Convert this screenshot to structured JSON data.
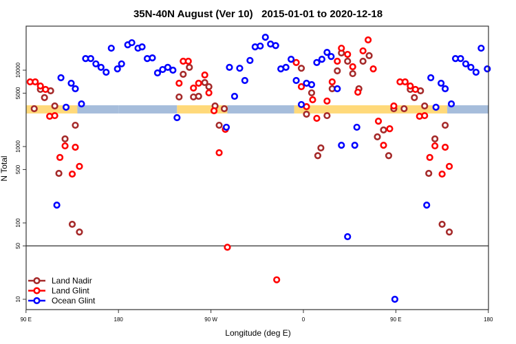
{
  "chart_data": {
    "type": "scatter",
    "title": "35N-40N August (Ver 10)   2015-01-01 to 2020-12-18",
    "xlabel": "Longitude (deg E)",
    "ylabel": "N Total",
    "y_scale": "log",
    "ylim": [
      7.3,
      38000
    ],
    "xlim_description": "90 E to 180, wrapping through 180 and 0 to 180",
    "x_ticks": [
      {
        "lon": 90,
        "wrap": 0,
        "label": "90 E"
      },
      {
        "lon": 180,
        "wrap": 0,
        "label": "180"
      },
      {
        "lon": -90,
        "wrap": 0,
        "label": "90 W"
      },
      {
        "lon": 0,
        "wrap": 0,
        "label": "0"
      },
      {
        "lon": 90,
        "wrap": 1,
        "label": "90 E"
      },
      {
        "lon": 180,
        "wrap": 1,
        "label": "180"
      }
    ],
    "y_ticks": [
      {
        "value": 10,
        "label": "10"
      },
      {
        "value": 50,
        "label": "50"
      },
      {
        "value": 100,
        "label": "100"
      },
      {
        "value": 500,
        "label": "500"
      },
      {
        "value": 1000,
        "label": "1000"
      },
      {
        "value": 5000,
        "label": "5000"
      },
      {
        "value": 10000,
        "label": "10000"
      }
    ],
    "reference_line": 50,
    "grid": false,
    "legend_position": "bottom-left",
    "background_band": {
      "n_range": [
        2710,
        3470
      ],
      "segments": [
        {
          "from": 90,
          "to": 140,
          "surface": "land"
        },
        {
          "from": 140,
          "to": 180,
          "surface": "ocean"
        },
        {
          "from": -180,
          "to": -123,
          "surface": "ocean"
        },
        {
          "from": -123,
          "to": -74,
          "surface": "land"
        },
        {
          "from": -74,
          "to": -9,
          "surface": "ocean"
        },
        {
          "from": -9,
          "to": 90,
          "surface": "land"
        }
      ],
      "colors": {
        "land": "#ffd97a",
        "ocean": "#a6bddb"
      }
    },
    "series": [
      {
        "name": "Land Nadir",
        "color": "#a52a2a",
        "points": [
          [
            98,
            3130
          ],
          [
            104,
            5600
          ],
          [
            108,
            4370
          ],
          [
            114,
            5370
          ],
          [
            118,
            3400
          ],
          [
            122,
            445
          ],
          [
            128,
            1260
          ],
          [
            135,
            96
          ],
          [
            138,
            1900
          ],
          [
            142,
            76
          ],
          [
            -121,
            4460
          ],
          [
            -117,
            8830
          ],
          [
            -111,
            10900
          ],
          [
            -107,
            4460
          ],
          [
            -102,
            4550
          ],
          [
            -96,
            6890
          ],
          [
            -92,
            6080
          ],
          [
            -86,
            3400
          ],
          [
            -82,
            1900
          ],
          [
            -77,
            3130
          ],
          [
            -2,
            10600
          ],
          [
            3,
            2650
          ],
          [
            8,
            5050
          ],
          [
            14,
            760
          ],
          [
            17,
            960
          ],
          [
            23,
            2540
          ],
          [
            28,
            5710
          ],
          [
            33,
            9800
          ],
          [
            37,
            16800
          ],
          [
            43,
            13100
          ],
          [
            48,
            9000
          ],
          [
            54,
            5710
          ],
          [
            58,
            13100
          ],
          [
            64,
            15500
          ],
          [
            72,
            1340
          ],
          [
            78,
            1650
          ],
          [
            83,
            760
          ],
          [
            88,
            3130
          ]
        ]
      },
      {
        "name": "Land Glint",
        "color": "#ff0000",
        "points": [
          [
            94,
            7030
          ],
          [
            99,
            7030
          ],
          [
            104,
            6210
          ],
          [
            109,
            5600
          ],
          [
            113,
            2490
          ],
          [
            118,
            2540
          ],
          [
            123,
            720
          ],
          [
            128,
            1020
          ],
          [
            135,
            436
          ],
          [
            138,
            980
          ],
          [
            142,
            550
          ],
          [
            -121,
            6740
          ],
          [
            -117,
            13100
          ],
          [
            -112,
            13100
          ],
          [
            -107,
            5830
          ],
          [
            -102,
            6740
          ],
          [
            -96,
            8650
          ],
          [
            -92,
            5050
          ],
          [
            -87,
            2940
          ],
          [
            -82,
            830
          ],
          [
            -76,
            1680
          ],
          [
            -74,
            48
          ],
          [
            -26,
            18
          ],
          [
            -7,
            12600
          ],
          [
            -2,
            6080
          ],
          [
            3,
            3330
          ],
          [
            9,
            4100
          ],
          [
            13,
            2340
          ],
          [
            23,
            3940
          ],
          [
            28,
            7030
          ],
          [
            33,
            13100
          ],
          [
            37,
            19400
          ],
          [
            43,
            16100
          ],
          [
            48,
            11100
          ],
          [
            53,
            5150
          ],
          [
            58,
            17900
          ],
          [
            63,
            24900
          ],
          [
            68,
            10400
          ],
          [
            73,
            2150
          ],
          [
            78,
            1040
          ],
          [
            84,
            1710
          ],
          [
            88,
            3400
          ]
        ]
      },
      {
        "name": "Ocean Glint",
        "color": "#0000ff",
        "points": [
          [
            124,
            7960
          ],
          [
            120,
            171
          ],
          [
            129,
            3270
          ],
          [
            134,
            6740
          ],
          [
            138,
            5710
          ],
          [
            144,
            3620
          ],
          [
            148,
            14200
          ],
          [
            153,
            14200
          ],
          [
            158,
            12100
          ],
          [
            163,
            10900
          ],
          [
            168,
            9400
          ],
          [
            173,
            19400
          ],
          [
            179,
            10400
          ],
          [
            -177,
            12100
          ],
          [
            -171,
            21500
          ],
          [
            -167,
            22900
          ],
          [
            -161,
            19400
          ],
          [
            -157,
            20200
          ],
          [
            -152,
            14200
          ],
          [
            -147,
            14500
          ],
          [
            -142,
            9200
          ],
          [
            -137,
            10200
          ],
          [
            -132,
            10900
          ],
          [
            -127,
            10000
          ],
          [
            -123,
            2390
          ],
          [
            -75,
            1790
          ],
          [
            -72,
            10900
          ],
          [
            -67,
            4550
          ],
          [
            -62,
            10600
          ],
          [
            -57,
            7330
          ],
          [
            -52,
            13400
          ],
          [
            -47,
            20200
          ],
          [
            -42,
            20700
          ],
          [
            -37,
            27000
          ],
          [
            -32,
            22000
          ],
          [
            -27,
            21000
          ],
          [
            -22,
            10400
          ],
          [
            -17,
            10900
          ],
          [
            -12,
            13900
          ],
          [
            -7,
            7330
          ],
          [
            -2,
            3550
          ],
          [
            3,
            6740
          ],
          [
            8,
            6470
          ],
          [
            13,
            12600
          ],
          [
            18,
            13900
          ],
          [
            23,
            17100
          ],
          [
            27,
            15100
          ],
          [
            33,
            5710
          ],
          [
            37,
            1040
          ],
          [
            43,
            66
          ],
          [
            50,
            1040
          ],
          [
            52,
            1790
          ],
          [
            89,
            10
          ]
        ]
      }
    ]
  }
}
